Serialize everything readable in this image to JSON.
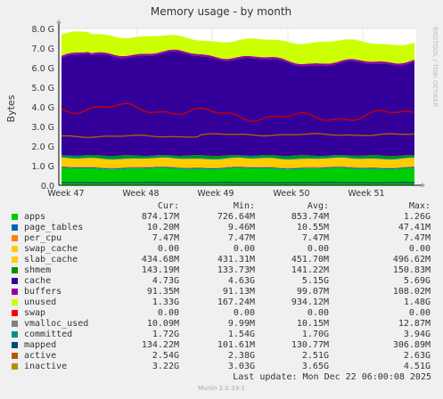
{
  "chart_data": {
    "type": "area",
    "title": "Memory usage - by month",
    "ylabel": "Bytes",
    "watermark": "RRDTOOL / TOBI OETIKER",
    "ylim": [
      0,
      8.0
    ],
    "y_unit": "G",
    "y_ticks": [
      "0.0",
      "1.0 G",
      "2.0 G",
      "3.0 G",
      "4.0 G",
      "5.0 G",
      "6.0 G",
      "7.0 G",
      "8.0 G"
    ],
    "x_ticks": [
      "Week 47",
      "Week 48",
      "Week 49",
      "Week 50",
      "Week 51"
    ],
    "x_range": [
      "Week 46.9",
      "Week 51.95"
    ],
    "grid": true,
    "columns": [
      "Cur:",
      "Min:",
      "Avg:",
      "Max:"
    ],
    "series": [
      {
        "name": "apps",
        "color": "#00cc00",
        "cur": "874.17M",
        "min": "726.64M",
        "avg": "853.74M",
        "max": "1.26G",
        "stack": true,
        "approx_gb": 0.85
      },
      {
        "name": "page_tables",
        "color": "#0066b3",
        "cur": "10.20M",
        "min": "9.46M",
        "avg": "10.55M",
        "max": "47.41M",
        "stack": true,
        "approx_gb": 0.01
      },
      {
        "name": "per_cpu",
        "color": "#ff8000",
        "cur": "7.47M",
        "min": "7.47M",
        "avg": "7.47M",
        "max": "7.47M",
        "stack": true,
        "approx_gb": 0.007
      },
      {
        "name": "swap_cache",
        "color": "#ffcc00",
        "cur": "0.00",
        "min": "0.00",
        "avg": "0.00",
        "max": "0.00",
        "stack": true,
        "approx_gb": 0
      },
      {
        "name": "slab_cache",
        "color": "#ffcc00",
        "cur": "434.68M",
        "min": "431.31M",
        "avg": "451.70M",
        "max": "496.62M",
        "stack": true,
        "approx_gb": 0.45
      },
      {
        "name": "shmem",
        "color": "#008f00",
        "cur": "143.19M",
        "min": "133.73M",
        "avg": "141.22M",
        "max": "150.83M",
        "stack": true,
        "approx_gb": 0.14
      },
      {
        "name": "cache",
        "color": "#330099",
        "cur": "4.73G",
        "min": "4.63G",
        "avg": "5.15G",
        "max": "5.69G",
        "stack": true,
        "approx_gb": 4.9
      },
      {
        "name": "buffers",
        "color": "#990099",
        "cur": "91.35M",
        "min": "91.13M",
        "avg": "99.07M",
        "max": "108.02M",
        "stack": true,
        "approx_gb": 0.1
      },
      {
        "name": "unused",
        "color": "#ccff00",
        "cur": "1.33G",
        "min": "167.24M",
        "avg": "934.12M",
        "max": "1.48G",
        "stack": true,
        "approx_gb": 0.9
      },
      {
        "name": "swap",
        "color": "#ff0000",
        "cur": "0.00",
        "min": "0.00",
        "avg": "0.00",
        "max": "0.00",
        "stack": true,
        "approx_gb": 0
      },
      {
        "name": "vmalloc_used",
        "color": "#808080",
        "cur": "10.09M",
        "min": "9.99M",
        "avg": "10.15M",
        "max": "12.87M",
        "stack": false,
        "approx_gb": 0.01
      },
      {
        "name": "committed",
        "color": "#008f8f",
        "cur": "1.72G",
        "min": "1.54G",
        "avg": "1.70G",
        "max": "3.94G",
        "stack": false,
        "approx_gb": 1.4
      },
      {
        "name": "mapped",
        "color": "#00487d",
        "cur": "134.22M",
        "min": "101.61M",
        "avg": "130.77M",
        "max": "306.89M",
        "stack": false,
        "approx_gb": 0.13
      },
      {
        "name": "active",
        "color": "#b35a00",
        "cur": "2.54G",
        "min": "2.38G",
        "avg": "2.51G",
        "max": "2.63G",
        "stack": false,
        "approx_gb": 2.5
      },
      {
        "name": "inactive",
        "color": "#b38f00",
        "cur": "3.22G",
        "min": "3.03G",
        "avg": "3.65G",
        "max": "4.51G",
        "stack": false,
        "approx_gb": 3.7
      }
    ],
    "last_update": "Last update:  Mon Dec 22 06:00:08 2025",
    "footer": "Munin 2.0.33-1"
  }
}
